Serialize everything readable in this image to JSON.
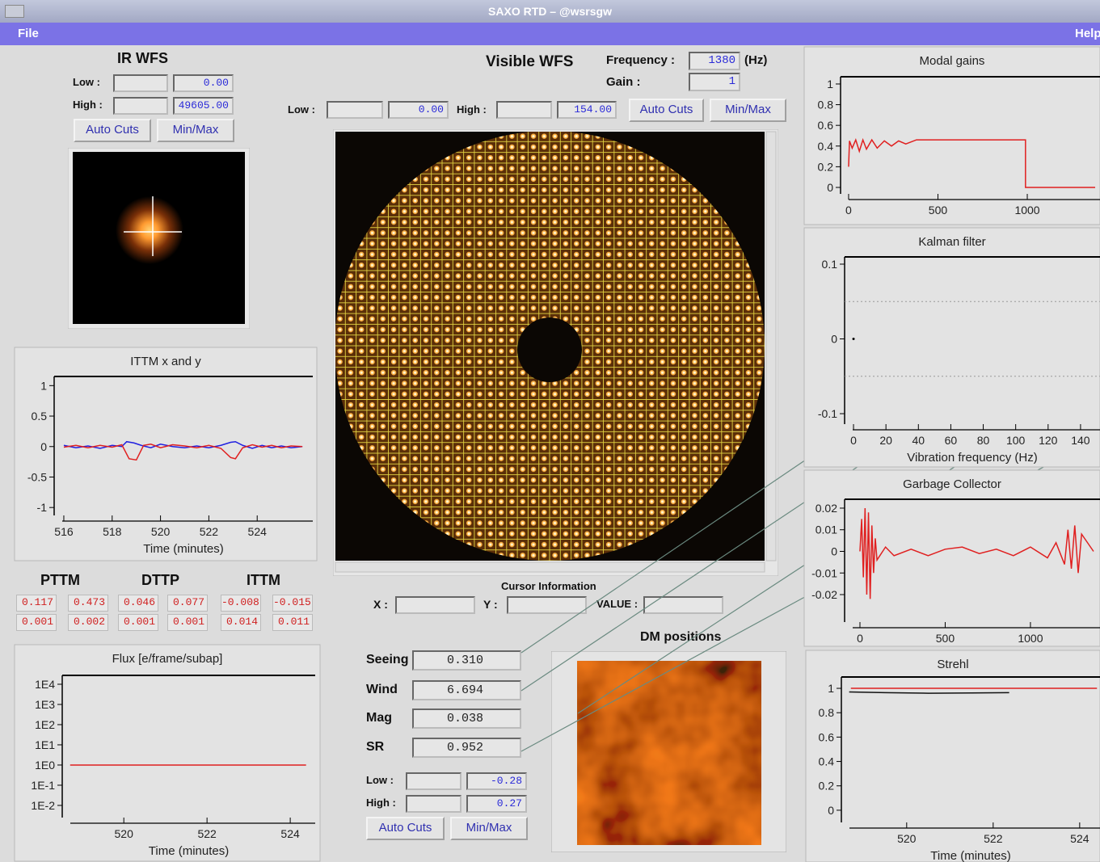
{
  "window": {
    "title": "SAXO RTD – @wsrsgw"
  },
  "menu": {
    "file": "File",
    "help": "Help"
  },
  "ir_wfs": {
    "title": "IR WFS",
    "low_label": "Low :",
    "low": "0.00",
    "high_label": "High :",
    "high": "49605.00",
    "auto_cuts": "Auto Cuts",
    "min_max": "Min/Max"
  },
  "visible_wfs": {
    "title": "Visible WFS",
    "frequency_label": "Frequency :",
    "frequency": "1380",
    "frequency_unit": "(Hz)",
    "gain_label": "Gain :",
    "gain": "1",
    "low_label": "Low :",
    "low": "0.00",
    "high_label": "High :",
    "high": "154.00",
    "auto_cuts": "Auto Cuts",
    "min_max": "Min/Max"
  },
  "cursor": {
    "title": "Cursor Information",
    "x_label": "X :",
    "y_label": "Y :",
    "value_label": "VALUE :"
  },
  "tip_tilt": {
    "headers": [
      "PTTM",
      "DTTP",
      "ITTM"
    ],
    "rows": [
      [
        "0.117",
        "0.473",
        "0.046",
        "0.077",
        "-0.008",
        "-0.015"
      ],
      [
        "0.001",
        "0.002",
        "0.001",
        "0.001",
        "0.014",
        "0.011"
      ]
    ]
  },
  "parameters": [
    {
      "label": "Seeing",
      "value": "0.310"
    },
    {
      "label": "Wind",
      "value": "6.694"
    },
    {
      "label": "Mag",
      "value": "0.038"
    },
    {
      "label": "SR",
      "value": "0.952"
    }
  ],
  "dm": {
    "title": "DM positions",
    "low_label": "Low :",
    "low": "-0.28",
    "high_label": "High :",
    "high": "0.27",
    "auto_cuts": "Auto Cuts",
    "min_max": "Min/Max"
  },
  "plots": [
    {
      "type": "line",
      "title": "ITTM x and y",
      "x_label": "Time (minutes)",
      "xlim": [
        515.6,
        526.3
      ],
      "ylim": [
        -1.13,
        1.15
      ],
      "xticks": [
        516,
        518,
        520,
        522,
        524
      ],
      "yticks": [
        1,
        0.5,
        0,
        -0.5,
        -1
      ],
      "series": [
        {
          "color": "#2020e0",
          "x": [
            516,
            516.5,
            517,
            517.5,
            518,
            518.4,
            518.6,
            518.9,
            519.2,
            519.6,
            520,
            520.5,
            521,
            521.5,
            522,
            522.5,
            522.9,
            523.1,
            523.4,
            523.8,
            524.2,
            524.6,
            525,
            525.4,
            525.87
          ],
          "values": [
            0.02,
            -0.02,
            0.01,
            -0.03,
            0.02,
            0.0,
            0.08,
            0.06,
            0.02,
            -0.02,
            0.04,
            0.0,
            -0.02,
            0.01,
            -0.02,
            0.02,
            0.07,
            0.08,
            0.02,
            -0.03,
            0.02,
            -0.02,
            0.01,
            -0.02,
            0.0
          ]
        },
        {
          "color": "#e02020",
          "x": [
            516,
            516.5,
            517,
            517.5,
            518,
            518.4,
            518.7,
            519.0,
            519.3,
            519.6,
            520,
            520.5,
            521,
            521.5,
            522,
            522.5,
            522.9,
            523.1,
            523.4,
            523.8,
            524.2,
            524.6,
            525,
            525.4,
            525.87
          ],
          "values": [
            -0.01,
            0.02,
            -0.02,
            0.02,
            -0.01,
            0.03,
            -0.2,
            -0.22,
            0.02,
            0.04,
            -0.02,
            0.03,
            0.01,
            -0.02,
            0.02,
            -0.03,
            -0.18,
            -0.2,
            -0.02,
            0.03,
            -0.01,
            0.02,
            -0.02,
            0.01,
            0.0
          ]
        }
      ]
    },
    {
      "type": "line",
      "title": "Flux [e/frame/subap]",
      "x_label": "Time (minutes)",
      "log_scale": true,
      "xlim": [
        518.52,
        524.6
      ],
      "ylim": [
        0.0025,
        27500
      ],
      "xticks": [
        520,
        522,
        524
      ],
      "yticks": [
        {
          "value": 10000,
          "label": "1E4"
        },
        {
          "value": 1000,
          "label": "1E3"
        },
        {
          "value": 100,
          "label": "1E2"
        },
        {
          "value": 10,
          "label": "1E1"
        },
        {
          "value": 1,
          "label": "1E0"
        },
        {
          "value": 0.1,
          "label": "1E-1"
        },
        {
          "value": 0.01,
          "label": "1E-2"
        }
      ],
      "series": [
        {
          "color": "#e02020",
          "x": [
            518.71,
            524.38
          ],
          "values": [
            1,
            1
          ]
        }
      ]
    },
    {
      "type": "line",
      "title": "Modal gains",
      "xlim": [
        -45,
        1407
      ],
      "ylim": [
        -0.0625,
        1.07
      ],
      "xticks": [
        0,
        500,
        1000
      ],
      "yticks": [
        1,
        0.8,
        0.6,
        0.4,
        0.2,
        0
      ],
      "series": [
        {
          "color": "#e02020",
          "x": [
            0,
            5,
            20,
            40,
            60,
            80,
            100,
            130,
            160,
            200,
            240,
            280,
            320,
            380,
            990,
            990,
            1380
          ],
          "values": [
            0.2,
            0.45,
            0.38,
            0.46,
            0.35,
            0.46,
            0.37,
            0.46,
            0.38,
            0.45,
            0.4,
            0.45,
            0.42,
            0.46,
            0.46,
            0,
            0
          ]
        }
      ]
    },
    {
      "type": "line",
      "title": "Kalman filter",
      "x_label": "Vibration frequency (Hz)",
      "xlim": [
        -5.5,
        152
      ],
      "ylim": [
        -0.114,
        0.1097
      ],
      "xticks": [
        0,
        20,
        40,
        60,
        80,
        100,
        120,
        140
      ],
      "yticks": [
        0.1,
        0,
        -0.1
      ],
      "grid_y": [
        0.05,
        -0.05
      ],
      "series": [
        {
          "color": "#000000",
          "x": [
            0
          ],
          "values": [
            0
          ]
        }
      ]
    },
    {
      "type": "line",
      "title": "Garbage Collector",
      "xlim": [
        -90,
        1408
      ],
      "ylim": [
        -0.0327,
        0.0241
      ],
      "xticks": [
        0,
        500,
        1000
      ],
      "yticks": [
        0.02,
        0.01,
        0,
        -0.01,
        -0.02
      ],
      "series": [
        {
          "color": "#e02020",
          "x": [
            0,
            10,
            20,
            30,
            40,
            50,
            60,
            70,
            80,
            90,
            100,
            150,
            200,
            300,
            400,
            500,
            600,
            700,
            800,
            900,
            1000,
            1100,
            1150,
            1200,
            1220,
            1240,
            1260,
            1280,
            1300,
            1370
          ],
          "values": [
            0,
            0.015,
            -0.012,
            0.02,
            -0.02,
            0.018,
            -0.022,
            0.012,
            -0.01,
            0.006,
            -0.004,
            0.002,
            -0.002,
            0.001,
            -0.002,
            0.001,
            0.002,
            -0.001,
            0.001,
            -0.002,
            0.002,
            -0.003,
            0.004,
            -0.006,
            0.01,
            -0.008,
            0.012,
            -0.01,
            0.008,
            0
          ]
        }
      ]
    },
    {
      "type": "line",
      "title": "Strehl",
      "x_label": "Time (minutes)",
      "xlim": [
        518.49,
        524.47
      ],
      "ylim": [
        -0.1,
        1.093
      ],
      "xticks": [
        520,
        522,
        524
      ],
      "yticks": [
        1,
        0.8,
        0.6,
        0.4,
        0.2,
        0
      ],
      "series": [
        {
          "color": "#e02020",
          "x": [
            518.71,
            524.4
          ],
          "values": [
            1,
            1
          ]
        },
        {
          "color": "#111111",
          "x": [
            518.67,
            519.5,
            520.5,
            521.5,
            522.37
          ],
          "values": [
            0.97,
            0.965,
            0.96,
            0.962,
            0.965
          ]
        }
      ]
    }
  ]
}
